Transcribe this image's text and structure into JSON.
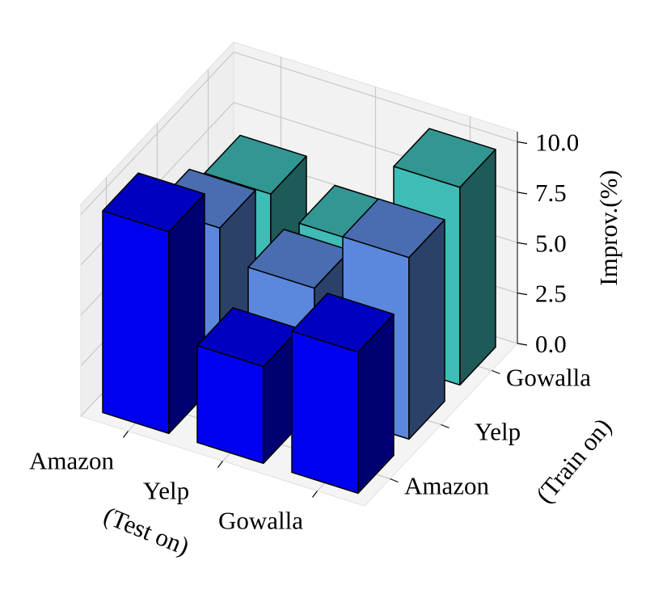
{
  "chart_data": {
    "type": "bar3d",
    "x_label": "(Test on)",
    "y_label": "(Train on)",
    "z_label": "Improv.(%)",
    "categories": [
      "Amazon",
      "Yelp",
      "Gowalla"
    ],
    "series": [
      {
        "name": "Amazon",
        "color": "#0000f0",
        "values": [
          10.0,
          4.8,
          7.0
        ]
      },
      {
        "name": "Yelp",
        "color": "#5b88dc",
        "values": [
          7.5,
          6.0,
          9.0
        ]
      },
      {
        "name": "Gowalla",
        "color": "#3fbcb6",
        "values": [
          6.5,
          5.5,
          9.8
        ]
      }
    ],
    "zlim": [
      0,
      10.5
    ],
    "zticks": [
      {
        "value": 0,
        "label": "0.0"
      },
      {
        "value": 2.5,
        "label": "2.5"
      },
      {
        "value": 5,
        "label": "5.0"
      },
      {
        "value": 7.5,
        "label": "7.5"
      },
      {
        "value": 10,
        "label": "10.0"
      }
    ],
    "grid": true
  }
}
